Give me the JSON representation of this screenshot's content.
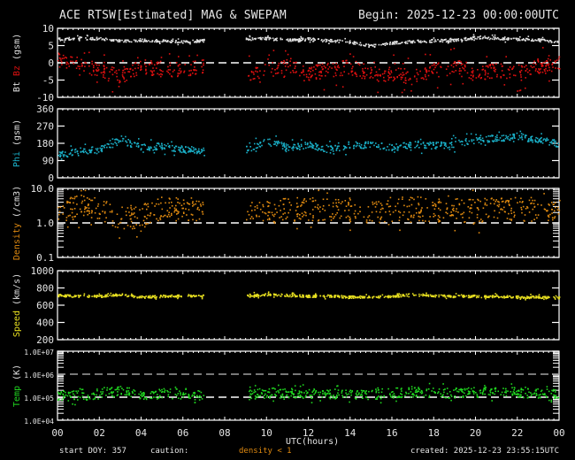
{
  "header": {
    "title": "ACE RTSW[Estimated] MAG & SWEPAM",
    "begin": "Begin: 2025-12-23 00:00:00UTC"
  },
  "footer": {
    "start_doy": "start DOY: 357",
    "caution_label": "caution:",
    "caution_value": "density < 1",
    "created": "created: 2025-12-23  23:55:15UTC",
    "xlabel": "UTC(hours)"
  },
  "colors": {
    "bt": "#e0e0e0",
    "bz": "#e01010",
    "phi": "#1ab0c8",
    "density": "#e08a10",
    "speed": "#e8e020",
    "temp": "#20d820",
    "axes": "#ffffff",
    "background": "#000000"
  },
  "chart_data": [
    {
      "type": "scatter",
      "title": "Bt Bz (gsm)",
      "ylabel": "Bt Bz (gsm)",
      "ylim": [
        -10,
        10
      ],
      "yticks": [
        "10",
        "5",
        "0",
        "-5",
        "-10"
      ],
      "reference_lines": [
        0
      ],
      "series": [
        {
          "name": "Bt",
          "x": [
            0,
            1,
            2,
            3,
            4,
            5,
            6,
            7,
            8,
            9,
            10,
            11,
            12,
            13,
            14,
            15,
            16,
            17,
            18,
            19,
            20,
            21,
            22,
            23,
            24
          ],
          "values": [
            7,
            7.3,
            7.2,
            6.5,
            6.8,
            6.4,
            6.3,
            6.6,
            null,
            7,
            7.2,
            6.8,
            7,
            6.6,
            6.2,
            5,
            6,
            6.3,
            6.6,
            6.7,
            7.5,
            7.3,
            7,
            6.8,
            6
          ]
        },
        {
          "name": "Bz",
          "x": [
            0,
            1,
            2,
            3,
            4,
            5,
            6,
            7,
            8,
            9,
            10,
            11,
            12,
            13,
            14,
            15,
            16,
            17,
            18,
            19,
            20,
            21,
            22,
            23,
            24
          ],
          "values": [
            1,
            -0.5,
            -2,
            -4,
            -1,
            -2,
            -2,
            -1,
            null,
            -3,
            -2,
            -1,
            -3,
            -2,
            -1,
            -3,
            -3,
            -4,
            -2,
            -1,
            -3,
            -2,
            -3,
            -1,
            0
          ]
        }
      ]
    },
    {
      "type": "scatter",
      "title": "Phi (gsm)",
      "ylabel": "Phi (gsm)",
      "ylim": [
        0,
        360
      ],
      "yticks": [
        "360",
        "270",
        "180",
        "90",
        "0"
      ],
      "series": [
        {
          "name": "Phi",
          "x": [
            0,
            1,
            2,
            3,
            4,
            5,
            6,
            7,
            8,
            9,
            10,
            11,
            12,
            13,
            14,
            15,
            16,
            17,
            18,
            19,
            20,
            21,
            22,
            23,
            24
          ],
          "values": [
            120,
            140,
            150,
            200,
            160,
            170,
            150,
            145,
            null,
            150,
            200,
            160,
            175,
            150,
            175,
            175,
            160,
            180,
            170,
            180,
            200,
            210,
            220,
            200,
            180
          ]
        }
      ]
    },
    {
      "type": "scatter",
      "title": "Density (/cm3)",
      "ylabel": "Density (/cm3)",
      "yscale": "log",
      "ylim": [
        0.1,
        10.0
      ],
      "yticks": [
        "10.0",
        "1.0",
        "0.1"
      ],
      "reference_lines": [
        1.0
      ],
      "series": [
        {
          "name": "Density",
          "x": [
            0,
            1,
            2,
            3,
            4,
            5,
            6,
            7,
            8,
            9,
            10,
            11,
            12,
            13,
            14,
            15,
            16,
            17,
            18,
            19,
            20,
            21,
            22,
            23,
            24
          ],
          "values": [
            2.5,
            3,
            2.5,
            1.5,
            1.5,
            3,
            2.5,
            2.5,
            null,
            2.5,
            2,
            2.5,
            2.8,
            2.5,
            2.5,
            2.3,
            2.5,
            2.8,
            2.5,
            2.5,
            2.3,
            2.5,
            2.6,
            2.8,
            2.5
          ]
        }
      ]
    },
    {
      "type": "scatter",
      "title": "Speed (km/s)",
      "ylabel": "Speed (km/s)",
      "ylim": [
        200,
        1000
      ],
      "yticks": [
        "1000",
        "800",
        "600",
        "400",
        "200"
      ],
      "series": [
        {
          "name": "Speed",
          "x": [
            0,
            1,
            2,
            3,
            4,
            5,
            6,
            7,
            8,
            9,
            10,
            11,
            12,
            13,
            14,
            15,
            16,
            17,
            18,
            19,
            20,
            21,
            22,
            23,
            24
          ],
          "values": [
            720,
            710,
            710,
            730,
            700,
            710,
            720,
            710,
            null,
            720,
            730,
            720,
            710,
            715,
            700,
            705,
            710,
            730,
            715,
            710,
            710,
            710,
            700,
            700,
            690
          ]
        }
      ]
    },
    {
      "type": "scatter",
      "title": "Temp (K)",
      "ylabel": "Temp (K)",
      "yscale": "log",
      "ylim": [
        10000,
        10000000
      ],
      "yticks": [
        "1.0E+07",
        "1.0E+06",
        "1.0E+05",
        "1.0E+04"
      ],
      "reference_lines": [
        1000000,
        100000
      ],
      "series": [
        {
          "name": "Temp",
          "x": [
            0,
            1,
            2,
            3,
            4,
            5,
            6,
            7,
            8,
            9,
            10,
            11,
            12,
            13,
            14,
            15,
            16,
            17,
            18,
            19,
            20,
            21,
            22,
            23,
            24
          ],
          "values": [
            130000,
            120000,
            150000,
            200000,
            120000,
            150000,
            150000,
            130000,
            null,
            120000,
            170000,
            160000,
            150000,
            150000,
            150000,
            140000,
            160000,
            180000,
            170000,
            160000,
            170000,
            180000,
            170000,
            160000,
            150000
          ]
        }
      ]
    }
  ],
  "xaxis": {
    "label": "UTC(hours)",
    "ticks": [
      "00",
      "02",
      "04",
      "06",
      "08",
      "10",
      "12",
      "14",
      "16",
      "18",
      "20",
      "22",
      "00"
    ],
    "xlim": [
      0,
      24
    ]
  },
  "panels": [
    {
      "key": "mag",
      "ylabel_parts": [
        {
          "text": "Bt",
          "color": "#e0e0e0"
        },
        {
          "text": " Bz",
          "color": "#e01010"
        },
        {
          "text": " (gsm)",
          "color": "#e0e0e0"
        }
      ]
    },
    {
      "key": "phi",
      "ylabel_parts": [
        {
          "text": "Phi",
          "color": "#1ab0c8"
        },
        {
          "text": " (gsm)",
          "color": "#e0e0e0"
        }
      ]
    },
    {
      "key": "density",
      "ylabel_parts": [
        {
          "text": "Density",
          "color": "#e08a10"
        },
        {
          "text": " (/cm3)",
          "color": "#e0e0e0"
        }
      ]
    },
    {
      "key": "speed",
      "ylabel_parts": [
        {
          "text": "Speed",
          "color": "#e8e020"
        },
        {
          "text": " (km/s)",
          "color": "#e0e0e0"
        }
      ]
    },
    {
      "key": "temp",
      "ylabel_parts": [
        {
          "text": "Temp",
          "color": "#20d820"
        },
        {
          "text": " (K)",
          "color": "#e0e0e0"
        }
      ]
    }
  ]
}
